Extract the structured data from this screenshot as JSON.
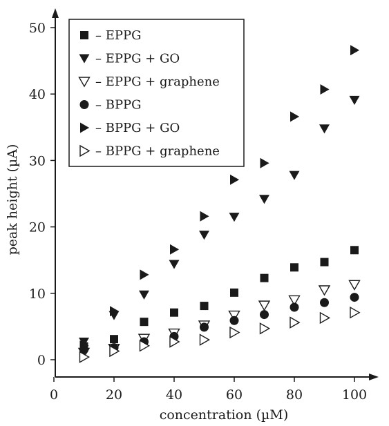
{
  "chart_data": {
    "type": "scatter",
    "xlabel": "concentration (µM)",
    "ylabel": "peak height (µA)",
    "xlim": [
      0,
      110
    ],
    "ylim": [
      -2.5,
      51
    ],
    "xticks": [
      0,
      20,
      40,
      60,
      80,
      100
    ],
    "yticks": [
      0,
      10,
      20,
      30,
      40,
      50
    ],
    "grid": false,
    "legend": {
      "placement": "top-left"
    },
    "series": [
      {
        "name": "– EPPG",
        "marker": "square-filled",
        "x": [
          10,
          20,
          30,
          40,
          50,
          60,
          70,
          80,
          90,
          100
        ],
        "y": [
          2.0,
          3.1,
          5.7,
          7.1,
          8.1,
          10.1,
          12.3,
          13.9,
          14.7,
          16.5
        ]
      },
      {
        "name": "– EPPG + GO",
        "marker": "triangle-down-filled",
        "x": [
          10,
          20,
          30,
          40,
          50,
          60,
          70,
          80,
          90,
          100
        ],
        "y": [
          2.7,
          6.7,
          9.8,
          14.4,
          18.8,
          21.5,
          24.2,
          27.8,
          34.8,
          39.1
        ]
      },
      {
        "name": "– EPPG + graphene",
        "marker": "triangle-down-open",
        "x": [
          10,
          20,
          30,
          40,
          50,
          60,
          70,
          80,
          90,
          100
        ],
        "y": [
          1.1,
          1.7,
          3.2,
          4.0,
          5.2,
          6.7,
          8.2,
          9.0,
          10.5,
          11.3
        ]
      },
      {
        "name": "– BPPG",
        "marker": "circle-filled",
        "x": [
          10,
          20,
          30,
          40,
          50,
          60,
          70,
          80,
          90,
          100
        ],
        "y": [
          1.5,
          1.8,
          2.7,
          3.5,
          4.9,
          5.9,
          6.8,
          7.9,
          8.6,
          9.4
        ]
      },
      {
        "name": "– BPPG + GO",
        "marker": "triangle-right-filled",
        "x": [
          10,
          20,
          30,
          40,
          50,
          60,
          70,
          80,
          90,
          100
        ],
        "y": [
          2.1,
          7.3,
          12.8,
          16.6,
          21.6,
          27.1,
          29.6,
          36.6,
          40.7,
          46.6
        ]
      },
      {
        "name": "– BPPG + graphene",
        "marker": "triangle-right-open",
        "x": [
          10,
          20,
          30,
          40,
          50,
          60,
          70,
          80,
          90,
          100
        ],
        "y": [
          0.4,
          1.3,
          2.1,
          2.7,
          3.0,
          4.1,
          4.7,
          5.6,
          6.3,
          7.1
        ]
      }
    ]
  }
}
